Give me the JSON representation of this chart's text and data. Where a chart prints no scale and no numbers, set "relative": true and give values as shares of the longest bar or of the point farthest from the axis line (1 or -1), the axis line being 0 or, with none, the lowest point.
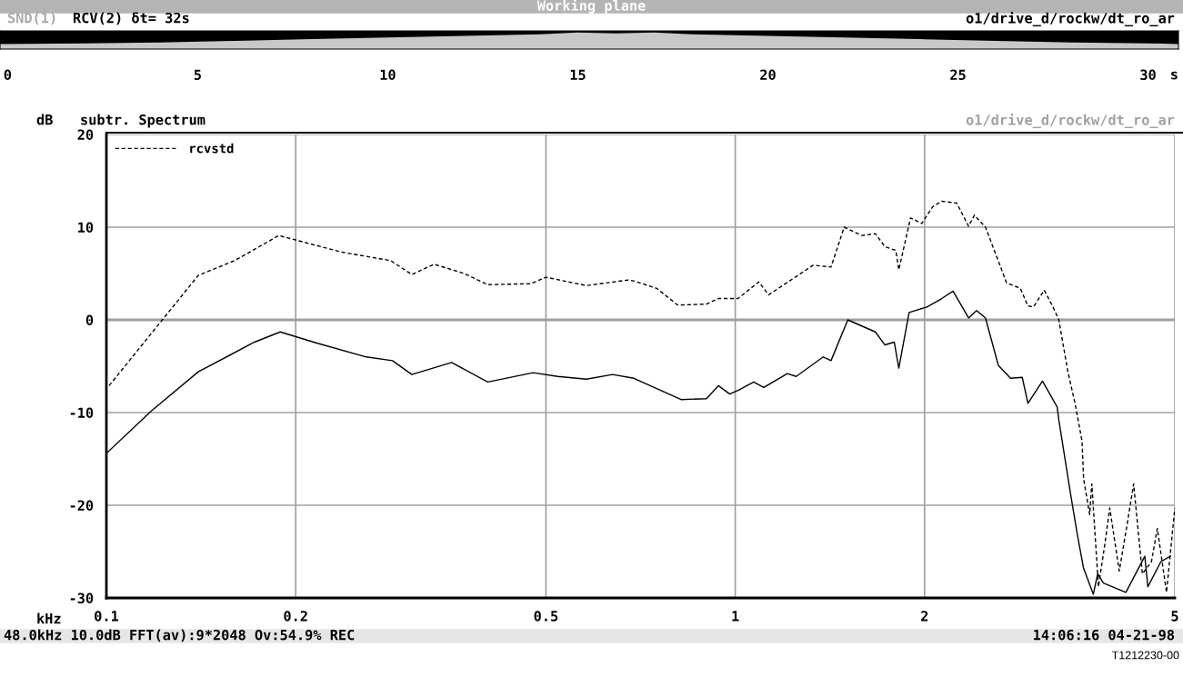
{
  "chart_data": [
    {
      "type": "area",
      "title": "Working plane",
      "xlabel": "s",
      "relative": true,
      "xlim": [
        -0.2,
        30.8
      ],
      "xticks": [
        0,
        5,
        10,
        15,
        20,
        25,
        30
      ],
      "annotations": [
        "SND(1)",
        "RCV(2) δt= 32s",
        "o1/drive_d/rockw/dt_ro_ar"
      ],
      "series": [
        {
          "color": "#c8c8c8",
          "x": [
            -0.2,
            2,
            4,
            6,
            8,
            10,
            12,
            14,
            15,
            16,
            17,
            18,
            20,
            22,
            24,
            26,
            28,
            30,
            30.8
          ],
          "values": [
            0.3,
            0.35,
            0.4,
            0.5,
            0.6,
            0.7,
            0.8,
            0.9,
            1,
            0.95,
            1,
            0.9,
            0.8,
            0.7,
            0.6,
            0.5,
            0.4,
            0.35,
            0.3
          ]
        }
      ]
    },
    {
      "type": "line",
      "title": "subtr. Spectrum",
      "ylabel": "dB",
      "xlabel": "kHz",
      "log": "x",
      "grid": true,
      "legend": "top left",
      "xlim": [
        0.1,
        5
      ],
      "xticks": [
        0.1,
        0.2,
        0.5,
        1,
        2,
        5
      ],
      "ylim": [
        -30,
        20
      ],
      "yticks": [
        -30,
        -20,
        -10,
        0,
        10,
        20
      ],
      "annotations": [
        "o1/drive_d/rockw/dt_ro_ar",
        "48.0kHz 10.0dB FFT(av):9*2048 Ov:54.9% REC",
        "14:06:16 04-21-98",
        "T1212230-00"
      ],
      "series": [
        {
          "name": "rcvstd",
          "color": "#000000",
          "line_style": "dashed",
          "x": [
            0.101,
            0.14,
            0.16,
            0.188,
            0.237,
            0.283,
            0.306,
            0.332,
            0.371,
            0.404,
            0.473,
            0.5,
            0.58,
            0.675,
            0.69,
            0.75,
            0.81,
            0.9,
            0.94,
            1.01,
            1.09,
            1.13,
            1.22,
            1.33,
            1.42,
            1.49,
            1.59,
            1.67,
            1.73,
            1.8,
            1.82,
            1.9,
            1.98,
            2.06,
            2.13,
            2.25,
            2.35,
            2.4,
            2.5,
            2.7,
            2.84,
            2.92,
            2.98,
            3.1,
            3.2,
            3.27,
            3.38,
            3.47,
            3.56,
            3.58,
            3.66,
            3.69,
            3.78,
            3.87,
            3.94,
            4.08,
            4.21,
            4.3,
            4.44,
            4.59,
            4.69,
            4.85,
            5.0
          ],
          "values": [
            -7.1,
            4.8,
            6.4,
            9.1,
            7.3,
            6.4,
            4.9,
            6.0,
            5.0,
            3.8,
            3.9,
            4.6,
            3.7,
            4.3,
            4.2,
            3.4,
            1.6,
            1.7,
            2.3,
            2.3,
            4.1,
            2.7,
            4.2,
            5.9,
            5.7,
            10.0,
            9.1,
            9.3,
            7.9,
            7.5,
            5.4,
            11.0,
            10.4,
            12.2,
            12.8,
            12.6,
            10.1,
            11.3,
            10.0,
            4.0,
            3.4,
            1.5,
            1.4,
            3.2,
            1.4,
            0.0,
            -5.6,
            -9.0,
            -13.1,
            -17.1,
            -21.0,
            -17.7,
            -28.8,
            -24.2,
            -20.3,
            -27.1,
            -21.6,
            -17.7,
            -27.4,
            -26.1,
            -22.5,
            -29.4,
            -20.3
          ]
        },
        {
          "color": "#000000",
          "line_style": "solid",
          "x": [
            0.1,
            0.118,
            0.14,
            0.172,
            0.189,
            0.216,
            0.259,
            0.285,
            0.306,
            0.354,
            0.404,
            0.477,
            0.522,
            0.58,
            0.638,
            0.69,
            0.82,
            0.9,
            0.94,
            0.98,
            1.01,
            1.07,
            1.11,
            1.21,
            1.25,
            1.38,
            1.42,
            1.51,
            1.67,
            1.73,
            1.79,
            1.82,
            1.89,
            2.02,
            2.13,
            2.22,
            2.35,
            2.42,
            2.5,
            2.62,
            2.74,
            2.86,
            2.92,
            3.08,
            3.25,
            3.27,
            3.41,
            3.5,
            3.58,
            3.71,
            3.77,
            3.85,
            4.18,
            4.48,
            4.53,
            4.75,
            4.92
          ],
          "values": [
            -14.4,
            -9.8,
            -5.6,
            -2.4,
            -1.3,
            -2.5,
            -4.0,
            -4.4,
            -5.9,
            -4.6,
            -6.7,
            -5.7,
            -6.1,
            -6.4,
            -5.9,
            -6.3,
            -8.6,
            -8.5,
            -7.1,
            -8.0,
            -7.6,
            -6.7,
            -7.3,
            -5.8,
            -6.1,
            -4.0,
            -4.4,
            0.0,
            -1.3,
            -2.7,
            -2.4,
            -5.2,
            0.8,
            1.4,
            2.3,
            3.1,
            0.2,
            1.0,
            0.2,
            -4.9,
            -6.3,
            -6.2,
            -9.0,
            -6.6,
            -9.4,
            -10.8,
            -18.6,
            -23.2,
            -26.8,
            -29.6,
            -27.4,
            -28.4,
            -29.4,
            -25.5,
            -28.8,
            -26.1,
            -25.5
          ]
        }
      ]
    }
  ]
}
